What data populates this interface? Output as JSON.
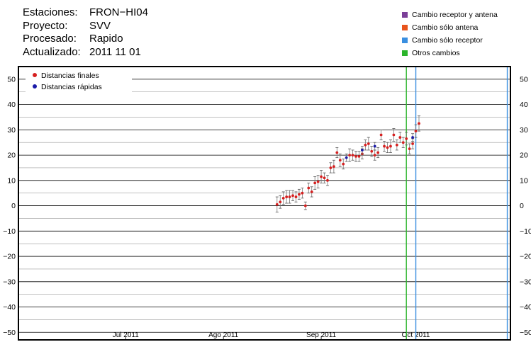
{
  "header": {
    "stations_label": "Estaciones:",
    "stations_value": "FRON−HI04",
    "project_label": "Proyecto:",
    "project_value": "SVV",
    "processed_label": "Procesado:",
    "processed_value": "Rapido",
    "updated_label": "Actualizado:",
    "updated_value": "2011 11 01"
  },
  "change_legend": [
    {
      "label": "Cambio receptor y antena",
      "color": "#7b3f98"
    },
    {
      "label": "Cambio sólo antena",
      "color": "#e8541c"
    },
    {
      "label": "Cambio sólo receptor",
      "color": "#3a8fe0"
    },
    {
      "label": "Otros cambios",
      "color": "#2bb52b"
    }
  ],
  "chart_data": {
    "type": "scatter",
    "xlabel": "",
    "ylabel": "",
    "ylim": [
      -53,
      55
    ],
    "xlim": [
      "2011-05-28",
      "2011-10-31"
    ],
    "y_ticks": [
      -50,
      -40,
      -30,
      -20,
      -10,
      0,
      10,
      20,
      30,
      40,
      50
    ],
    "y_tick_labels": [
      "−50",
      "−40",
      "−30",
      "−20",
      "−10",
      "0",
      "10",
      "20",
      "30",
      "40",
      "50"
    ],
    "x_ticks": [
      {
        "date": "2011-07-01",
        "label": "Jul 2011"
      },
      {
        "date": "2011-08-01",
        "label": "Ago 2011"
      },
      {
        "date": "2011-09-01",
        "label": "Sep 2011"
      },
      {
        "date": "2011-10-01",
        "label": "Oct 2011"
      }
    ],
    "grid": true,
    "legend": {
      "placement": "top-left"
    },
    "series": [
      {
        "name": "Distancias finales",
        "color": "#d62020",
        "points": [
          [
            "2011-08-18",
            0.5,
            3
          ],
          [
            "2011-08-19",
            1.5,
            2.5
          ],
          [
            "2011-08-20",
            3,
            2.5
          ],
          [
            "2011-08-21",
            3.5,
            2.5
          ],
          [
            "2011-08-22",
            3.5,
            2.5
          ],
          [
            "2011-08-23",
            4,
            2
          ],
          [
            "2011-08-24",
            3.5,
            2
          ],
          [
            "2011-08-25",
            4.5,
            2
          ],
          [
            "2011-08-26",
            5,
            2
          ],
          [
            "2011-08-27",
            0,
            1.5
          ],
          [
            "2011-08-28",
            7,
            2
          ],
          [
            "2011-08-29",
            5.5,
            2
          ],
          [
            "2011-08-30",
            9,
            2.5
          ],
          [
            "2011-08-31",
            9.5,
            2.5
          ],
          [
            "2011-09-01",
            11.5,
            2.5
          ],
          [
            "2011-09-02",
            11,
            2
          ],
          [
            "2011-09-03",
            10,
            2
          ],
          [
            "2011-09-04",
            15,
            2
          ],
          [
            "2011-09-05",
            15.5,
            2.5
          ],
          [
            "2011-09-06",
            21,
            2
          ],
          [
            "2011-09-07",
            18,
            2.5
          ],
          [
            "2011-09-08",
            16.5,
            2
          ],
          [
            "2011-09-10",
            20,
            2.5
          ],
          [
            "2011-09-11",
            20,
            2
          ],
          [
            "2011-09-12",
            19.5,
            2
          ],
          [
            "2011-09-13",
            19.5,
            2
          ],
          [
            "2011-09-14",
            20.5,
            2
          ],
          [
            "2011-09-15",
            24,
            2
          ],
          [
            "2011-09-16",
            24.5,
            2.5
          ],
          [
            "2011-09-17",
            21.5,
            2
          ],
          [
            "2011-09-18",
            20,
            2
          ],
          [
            "2011-09-19",
            21,
            2
          ],
          [
            "2011-09-20",
            28,
            2
          ],
          [
            "2011-09-21",
            23.5,
            2
          ],
          [
            "2011-09-22",
            23,
            2
          ],
          [
            "2011-09-23",
            23.5,
            2.5
          ],
          [
            "2011-09-24",
            28,
            2.5
          ],
          [
            "2011-09-25",
            24,
            2
          ],
          [
            "2011-09-26",
            27,
            2
          ],
          [
            "2011-09-27",
            25,
            2
          ],
          [
            "2011-09-28",
            26.5,
            2.5
          ],
          [
            "2011-09-29",
            22.5,
            2
          ],
          [
            "2011-09-30",
            24.5,
            2
          ],
          [
            "2011-10-01",
            29.5,
            2.5
          ],
          [
            "2011-10-02",
            32.5,
            3
          ]
        ]
      },
      {
        "name": "Distancias rápidas",
        "color": "#1a1aa8",
        "points": [
          [
            "2011-09-09",
            19,
            1.5
          ],
          [
            "2011-09-14",
            22,
            1.5
          ],
          [
            "2011-09-18",
            23.5,
            1.5
          ],
          [
            "2011-09-30",
            27,
            1.5
          ]
        ]
      }
    ],
    "change_events": [
      {
        "date": "2011-09-28",
        "type": "Otros cambios"
      },
      {
        "date": "2011-10-01",
        "type": "Cambio sólo receptor"
      },
      {
        "date": "2011-10-30",
        "type": "Cambio sólo receptor"
      }
    ]
  }
}
